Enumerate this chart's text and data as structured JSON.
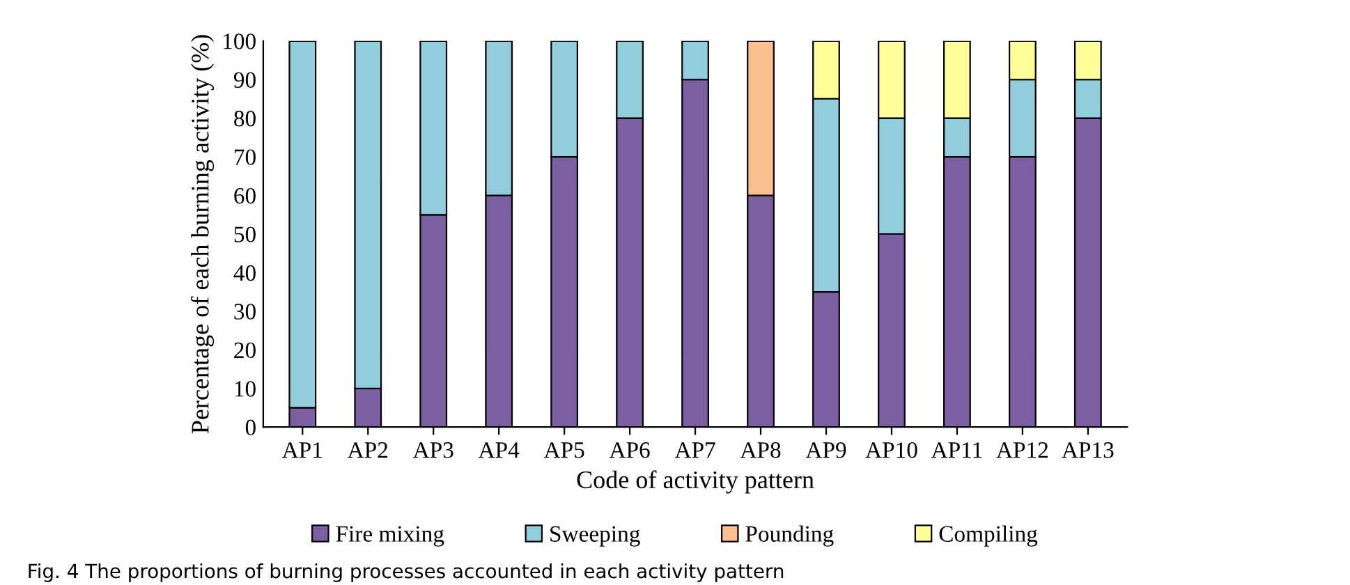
{
  "chart_data": {
    "type": "bar",
    "stacked": true,
    "xlabel": "Code of activity pattern",
    "ylabel": "Percentage of each burning activity (%)",
    "categories": [
      "AP1",
      "AP2",
      "AP3",
      "AP4",
      "AP5",
      "AP6",
      "AP7",
      "AP8",
      "AP9",
      "AP10",
      "AP11",
      "AP12",
      "AP13"
    ],
    "series": [
      {
        "name": "Fire mixing",
        "color": "#7b5fa0",
        "values": [
          5,
          10,
          55,
          60,
          70,
          80,
          90,
          60,
          35,
          50,
          70,
          70,
          80
        ]
      },
      {
        "name": "Sweeping",
        "color": "#92cddc",
        "values": [
          95,
          90,
          45,
          40,
          30,
          20,
          10,
          null,
          50,
          30,
          10,
          20,
          10
        ]
      },
      {
        "name": "Pounding",
        "color": "#fac090",
        "values": [
          null,
          null,
          null,
          null,
          null,
          null,
          null,
          40,
          null,
          null,
          null,
          null,
          null
        ]
      },
      {
        "name": "Compiling",
        "color": "#ffff99",
        "values": [
          null,
          null,
          null,
          null,
          null,
          null,
          null,
          null,
          15,
          20,
          20,
          10,
          10
        ]
      }
    ],
    "ylim": [
      0,
      100
    ],
    "yticks": [
      0,
      10,
      20,
      30,
      40,
      50,
      60,
      70,
      80,
      90,
      100
    ],
    "grid": false,
    "legend": "bottom",
    "annotations": [
      "Fig. 4 The proportions of burning processes accounted in each activity pattern"
    ]
  }
}
